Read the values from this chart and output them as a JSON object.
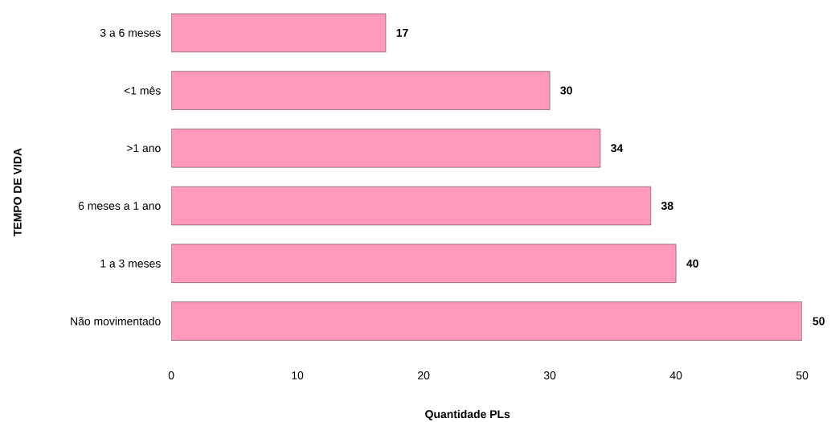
{
  "chart_data": {
    "type": "bar",
    "orientation": "horizontal",
    "categories": [
      "3 a 6 meses",
      "<1 mês",
      ">1 ano",
      "6 meses a 1 ano",
      "1 a 3 meses",
      "Não movimentado"
    ],
    "values": [
      17,
      30,
      34,
      38,
      40,
      50
    ],
    "color": "#ff99bb",
    "xlim": [
      0,
      50
    ],
    "xticks": [
      0,
      10,
      20,
      30,
      40,
      50
    ],
    "xlabel": "Quantidade PLs",
    "ylabel": "TEMPO DE VIDA",
    "data_labels": true
  }
}
